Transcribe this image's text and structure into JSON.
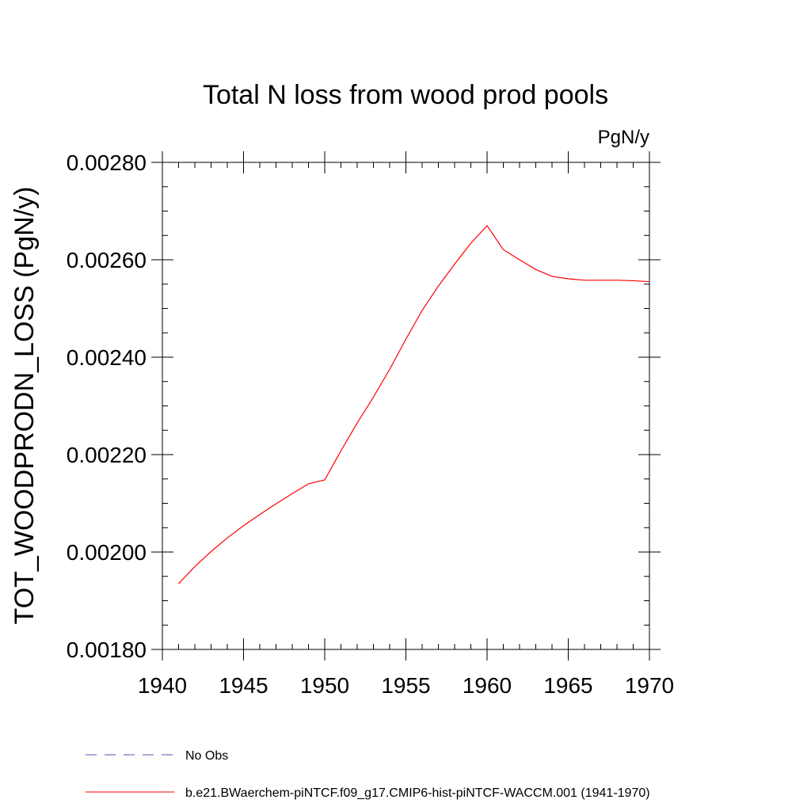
{
  "chart_data": {
    "type": "line",
    "title": "Total N loss from wood prod pools",
    "units": "PgN/y",
    "ylabel": "TOT_WOODPRODN_LOSS  (PgN/y)",
    "xlabel": "",
    "xlim": [
      1940,
      1970
    ],
    "ylim": [
      0.0018,
      0.0028
    ],
    "x_ticks": [
      1940,
      1945,
      1950,
      1955,
      1960,
      1965,
      1970
    ],
    "x_tick_labels": [
      "1940",
      "1945",
      "1950",
      "1955",
      "1960",
      "1965",
      "1970"
    ],
    "y_ticks": [
      0.0018,
      0.002,
      0.0022,
      0.0024,
      0.0026,
      0.0028
    ],
    "y_tick_labels": [
      "0.00180",
      "0.00200",
      "0.00220",
      "0.00240",
      "0.00260",
      "0.00280"
    ],
    "grid": false,
    "legend_position": "bottom-left",
    "series": [
      {
        "name": "b.e21.BWaerchem-piNTCF.f09_g17.CMIP6-hist-piNTCF-WACCM.001 (1941-1970)",
        "color": "#ff0000",
        "dash": "solid",
        "x": [
          1941,
          1942,
          1943,
          1944,
          1945,
          1946,
          1947,
          1948,
          1949,
          1950,
          1951,
          1952,
          1953,
          1954,
          1955,
          1956,
          1957,
          1958,
          1959,
          1960,
          1961,
          1962,
          1963,
          1964,
          1965,
          1966,
          1967,
          1968,
          1969,
          1970
        ],
        "y": [
          0.001935,
          0.00197,
          0.002001,
          0.002029,
          0.002054,
          0.002077,
          0.002099,
          0.00212,
          0.00214,
          0.002148,
          0.002208,
          0.002265,
          0.002318,
          0.002375,
          0.002437,
          0.002496,
          0.002546,
          0.002591,
          0.002634,
          0.00267,
          0.002621,
          0.0026,
          0.00258,
          0.002566,
          0.002561,
          0.002558,
          0.002558,
          0.002558,
          0.002557,
          0.002555
        ]
      },
      {
        "name": "No Obs",
        "color": "#5555aa",
        "dash": "dashed",
        "x": [],
        "y": []
      }
    ]
  }
}
